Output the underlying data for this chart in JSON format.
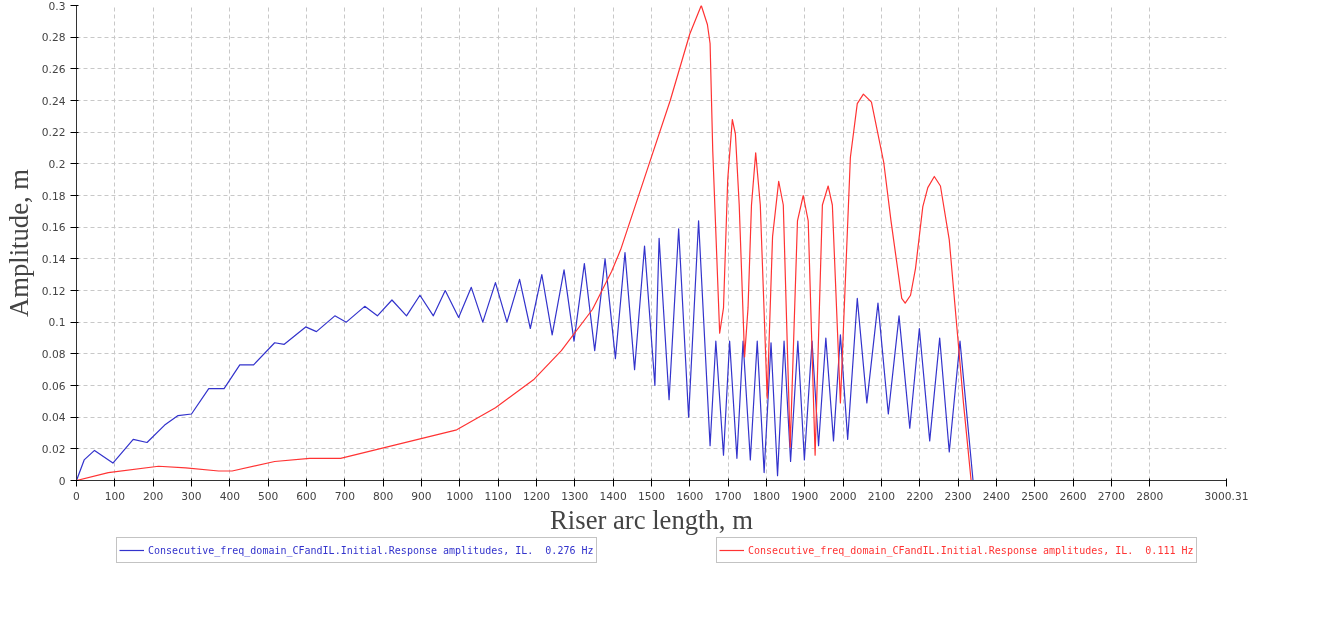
{
  "chart_data": {
    "type": "line",
    "xlabel": "Riser arc length, m",
    "ylabel": "Amplitude, m",
    "xlim": [
      0,
      3000.31
    ],
    "ylim": [
      0,
      0.3
    ],
    "xticks": [
      0,
      100,
      200,
      300,
      400,
      500,
      600,
      700,
      800,
      900,
      1000,
      1100,
      1200,
      1300,
      1400,
      1500,
      1600,
      1700,
      1800,
      1900,
      2000,
      2100,
      2200,
      2300,
      2400,
      2500,
      2600,
      2700,
      2800,
      3000.31
    ],
    "yticks": [
      0,
      0.02,
      0.04,
      0.06,
      0.08,
      0.1,
      0.12,
      0.14,
      0.16,
      0.18,
      0.2,
      0.22,
      0.24,
      0.26,
      0.28,
      0.3
    ],
    "grid": true,
    "legend": "bottom",
    "line_style": "solid",
    "series": [
      {
        "name": "Consecutive_freq_domain_CFandIL.Initial.Response amplitudes, IL.  0.276 Hz",
        "color": "#3333cc",
        "x": [
          0,
          20,
          47,
          95,
          148,
          184,
          230,
          265,
          300,
          345,
          385,
          426,
          462,
          517,
          542,
          598,
          626,
          674,
          704,
          752,
          785,
          823,
          861,
          896,
          931,
          962,
          997,
          1030,
          1060,
          1093,
          1123,
          1156,
          1184,
          1214,
          1241,
          1272,
          1298,
          1325,
          1352,
          1379,
          1406,
          1431,
          1456,
          1482,
          1509,
          1520,
          1546,
          1571,
          1597,
          1623,
          1653,
          1668,
          1688,
          1704,
          1723,
          1739,
          1758,
          1776,
          1794,
          1812,
          1829,
          1846,
          1863,
          1882,
          1899,
          1919,
          1936,
          1955,
          1975,
          1993,
          2012,
          2037,
          2062,
          2091,
          2118,
          2146,
          2174,
          2199,
          2226,
          2252,
          2277,
          2305,
          2339,
          2350
        ],
        "values": [
          0,
          0.013,
          0.019,
          0.011,
          0.026,
          0.024,
          0.035,
          0.041,
          0.042,
          0.058,
          0.058,
          0.073,
          0.073,
          0.087,
          0.086,
          0.097,
          0.094,
          0.104,
          0.1,
          0.11,
          0.104,
          0.114,
          0.104,
          0.117,
          0.104,
          0.12,
          0.103,
          0.122,
          0.1,
          0.125,
          0.1,
          0.127,
          0.096,
          0.13,
          0.092,
          0.133,
          0.088,
          0.137,
          0.082,
          0.14,
          0.077,
          0.144,
          0.07,
          0.148,
          0.06,
          0.153,
          0.051,
          0.159,
          0.04,
          0.164,
          0.022,
          0.088,
          0.016,
          0.088,
          0.014,
          0.088,
          0.013,
          0.088,
          0.005,
          0.087,
          0.003,
          0.088,
          0.012,
          0.088,
          0.013,
          0.088,
          0.022,
          0.09,
          0.025,
          0.092,
          0.026,
          0.115,
          0.049,
          0.112,
          0.042,
          0.104,
          0.033,
          0.096,
          0.025,
          0.09,
          0.018,
          0.088,
          0,
          0
        ]
      },
      {
        "name": "Consecutive_freq_domain_CFandIL.Initial.Response amplitudes, IL.  0.111 Hz",
        "color": "#ff3333",
        "x": [
          0,
          83,
          214,
          285,
          371,
          406,
          517,
          608,
          689,
          790,
          891,
          992,
          1093,
          1194,
          1265,
          1346,
          1396,
          1420,
          1494,
          1549,
          1600,
          1630,
          1646,
          1653,
          1660,
          1678,
          1688,
          1699,
          1711,
          1719,
          1729,
          1743,
          1752,
          1761,
          1772,
          1784,
          1802,
          1816,
          1832,
          1844,
          1862,
          1881,
          1896,
          1909,
          1927,
          1946,
          1961,
          1972,
          1993,
          2019,
          2037,
          2053,
          2074,
          2106,
          2125,
          2153,
          2162,
          2176,
          2189,
          2208,
          2221,
          2238,
          2254,
          2277,
          2295,
          2314,
          2334
        ],
        "values": [
          0,
          0.005,
          0.009,
          0.008,
          0.006,
          0.006,
          0.012,
          0.014,
          0.014,
          0.02,
          0.026,
          0.032,
          0.046,
          0.064,
          0.082,
          0.108,
          0.132,
          0.146,
          0.2,
          0.24,
          0.282,
          0.3,
          0.288,
          0.276,
          0.208,
          0.093,
          0.109,
          0.19,
          0.228,
          0.219,
          0.174,
          0.078,
          0.109,
          0.174,
          0.207,
          0.174,
          0.052,
          0.154,
          0.189,
          0.174,
          0.021,
          0.164,
          0.18,
          0.164,
          0.016,
          0.174,
          0.186,
          0.174,
          0.049,
          0.204,
          0.238,
          0.244,
          0.239,
          0.201,
          0.164,
          0.115,
          0.112,
          0.117,
          0.134,
          0.173,
          0.185,
          0.192,
          0.186,
          0.152,
          0.102,
          0.049,
          0
        ]
      }
    ]
  }
}
